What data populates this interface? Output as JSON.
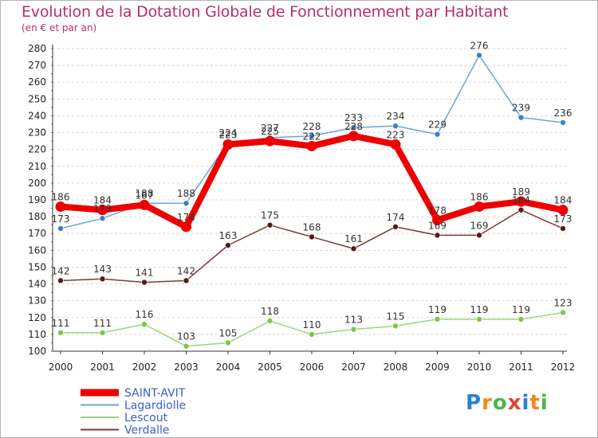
{
  "header": {
    "title": "Evolution de la Dotation Globale de Fonctionnement par Habitant",
    "subtitle": "(en € et par an)"
  },
  "logo": {
    "letters": [
      "P",
      "r",
      "o",
      "x",
      "i",
      "t",
      "i"
    ],
    "colors": [
      "#2a7fd4",
      "#f08a1c",
      "#49b84a",
      "#e0443a",
      "#2a7fd4",
      "#f08a1c",
      "#49b84a"
    ]
  },
  "chart_data": {
    "type": "line",
    "title": "Evolution de la Dotation Globale de Fonctionnement par Habitant",
    "ylabel": "(en € et par an)",
    "x": [
      "2000",
      "2001",
      "2002",
      "2003",
      "2004",
      "2005",
      "2006",
      "2007",
      "2008",
      "2009",
      "2010",
      "2011",
      "2012"
    ],
    "ylim": [
      100,
      280
    ],
    "yticks": [
      100,
      110,
      120,
      130,
      140,
      150,
      160,
      170,
      180,
      190,
      200,
      210,
      220,
      230,
      240,
      250,
      260,
      270,
      280
    ],
    "grid": true,
    "legend": "bottom-left",
    "series": [
      {
        "name": "Lagardiolle",
        "color": "#6ea4d3",
        "marker": "#3b82c4",
        "values": [
          173,
          179,
          188,
          188,
          224,
          227,
          228,
          233,
          234,
          229,
          276,
          239,
          236
        ]
      },
      {
        "name": "Lescout",
        "color": "#9ed47a",
        "marker": "#7cc74a",
        "values": [
          111,
          111,
          116,
          103,
          105,
          118,
          110,
          113,
          115,
          119,
          119,
          119,
          123
        ]
      },
      {
        "name": "Verdalle",
        "color": "#7a3a3a",
        "marker": "#5a1818",
        "values": [
          142,
          143,
          141,
          142,
          163,
          175,
          168,
          161,
          174,
          169,
          169,
          184,
          173
        ]
      },
      {
        "name": "SAINT-AVIT",
        "color": "#ee0000",
        "marker": "#ee0000",
        "values": [
          186,
          184,
          187,
          174,
          223,
          225,
          222,
          228,
          223,
          178,
          186,
          189,
          184
        ]
      }
    ]
  }
}
